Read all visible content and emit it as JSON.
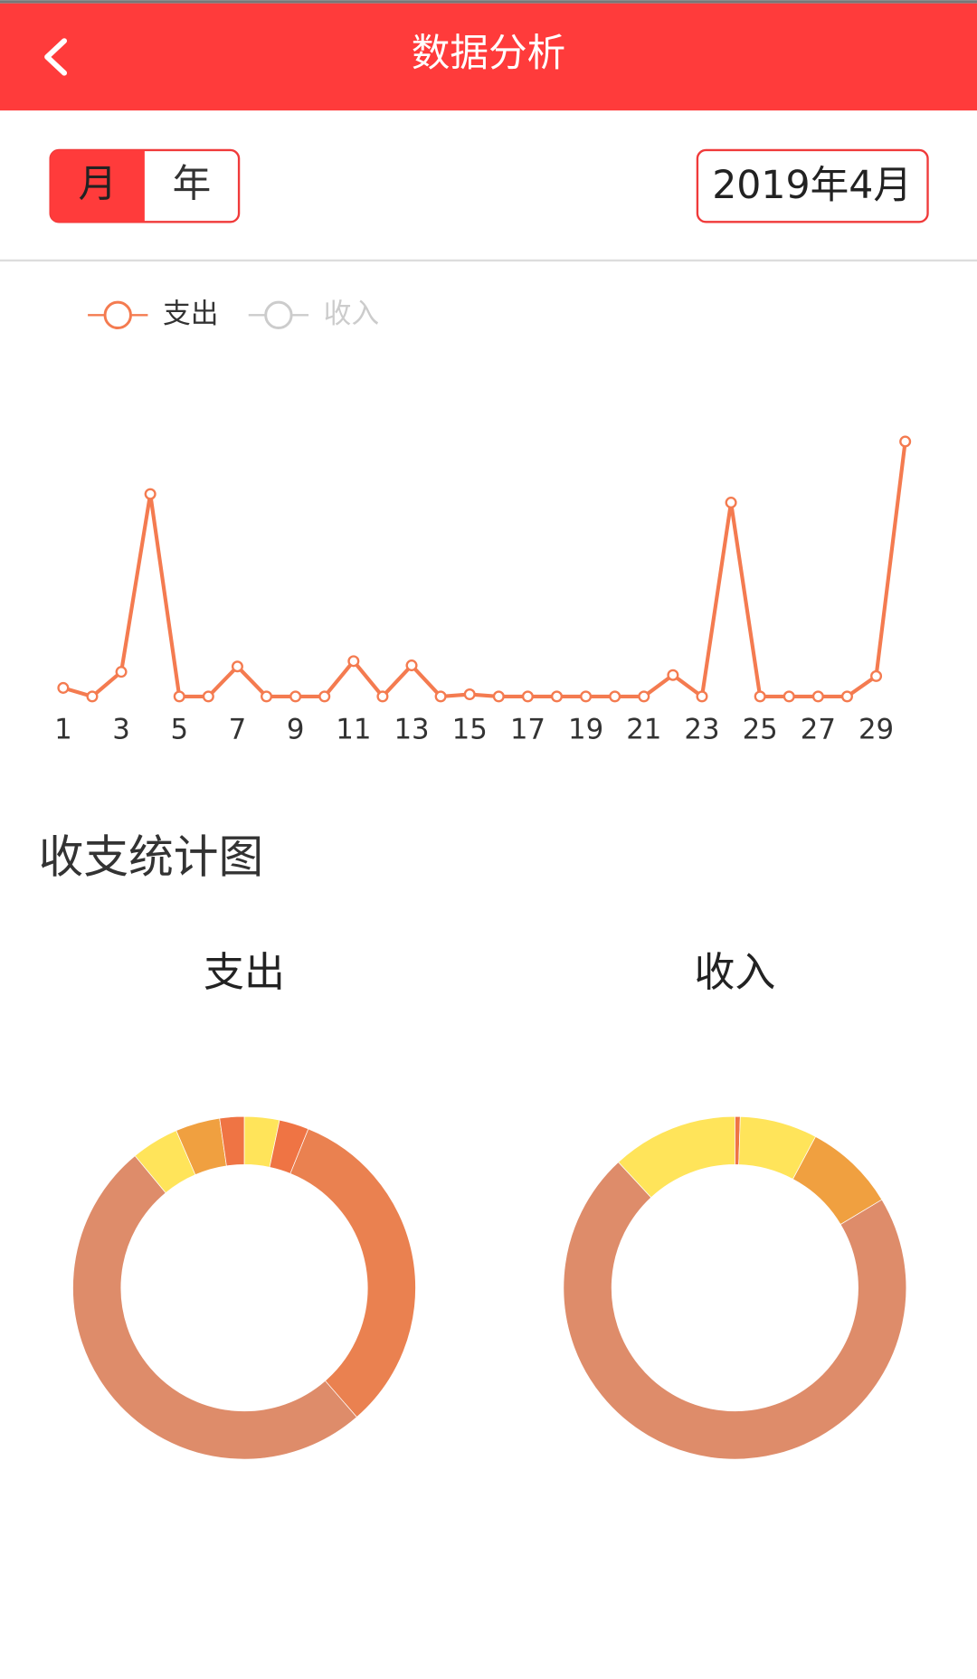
{
  "header": {
    "title": "数据分析"
  },
  "period_toggle": [
    "月",
    "年"
  ],
  "date": "2019年4月",
  "section_title": "收支统计图",
  "chart_data": [
    {
      "type": "line",
      "x": [
        1,
        2,
        3,
        4,
        5,
        6,
        7,
        8,
        9,
        10,
        11,
        12,
        13,
        14,
        15,
        16,
        17,
        18,
        19,
        20,
        21,
        22,
        23,
        24,
        25,
        26,
        27,
        28,
        29,
        30
      ],
      "series": [
        {
          "name": "支出",
          "color": "#f47b50",
          "values": [
            8,
            0,
            23,
            189,
            0,
            0,
            28,
            0,
            0,
            0,
            33,
            0,
            29,
            0,
            2,
            0,
            0,
            0,
            0,
            0,
            0,
            20,
            0,
            181,
            0,
            0,
            0,
            0,
            19,
            238
          ]
        }
      ],
      "inactive_legend": {
        "name": "收入",
        "color": "#cccccc"
      },
      "xlim": [
        1,
        30
      ],
      "xticks": [
        1,
        3,
        5,
        7,
        9,
        11,
        13,
        15,
        17,
        19,
        21,
        23,
        25,
        27,
        29
      ],
      "ylim": [
        0,
        238
      ]
    },
    {
      "type": "pie",
      "title": "支出",
      "values": [
        3.3,
        2.8,
        32.5,
        50.4,
        4.5,
        4.2,
        2.3
      ],
      "colors": [
        "#ffe45a",
        "#ef7444",
        "#ea8150",
        "#de8c6a",
        "#ffe45a",
        "#f0a040",
        "#ef7444"
      ]
    },
    {
      "type": "pie",
      "title": "收入",
      "values": [
        0.5,
        7.3,
        8.6,
        71.7,
        11.9
      ],
      "colors": [
        "#ef7444",
        "#ffe45a",
        "#f0a040",
        "#de8c6a",
        "#ffe45a"
      ]
    }
  ]
}
